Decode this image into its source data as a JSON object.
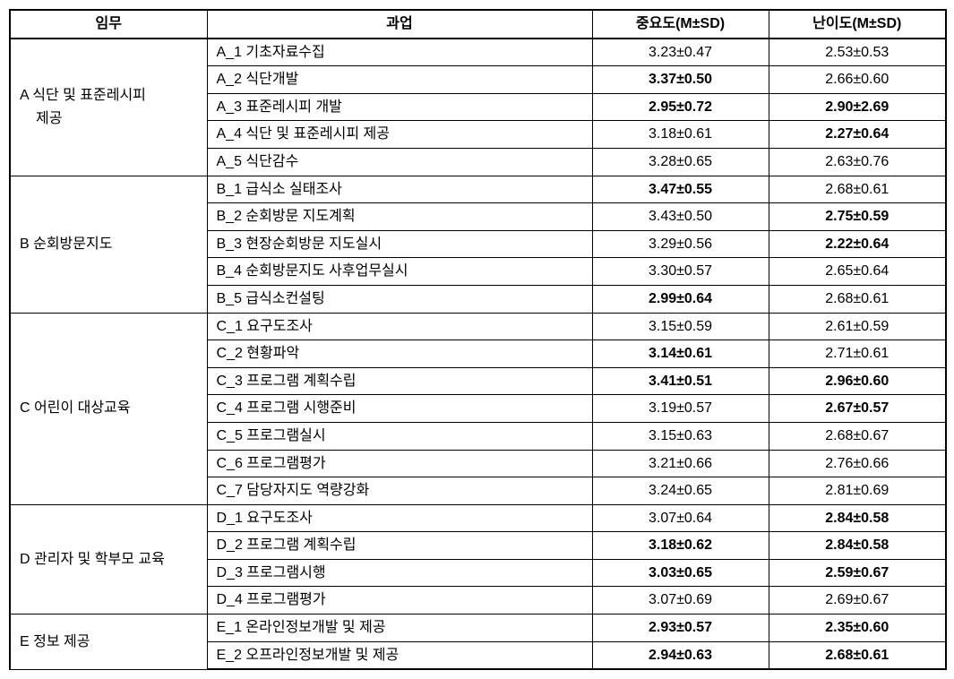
{
  "headers": {
    "duty": "임무",
    "task": "과업",
    "importance": "중요도(M±SD)",
    "difficulty": "난이도(M±SD)"
  },
  "sections": [
    {
      "dutyLine1": "A 식단 및 표준레시피",
      "dutyLine2": "제공",
      "rows": [
        {
          "task": "A_1 기초자료수집",
          "importance": "3.23±0.47",
          "importanceBold": false,
          "difficulty": "2.53±0.53",
          "difficultyBold": false
        },
        {
          "task": "A_2 식단개발",
          "importance": "3.37±0.50",
          "importanceBold": true,
          "difficulty": "2.66±0.60",
          "difficultyBold": false
        },
        {
          "task": "A_3 표준레시피 개발",
          "importance": "2.95±0.72",
          "importanceBold": true,
          "difficulty": "2.90±2.69",
          "difficultyBold": true
        },
        {
          "task": "A_4 식단 및 표준레시피 제공",
          "importance": "3.18±0.61",
          "importanceBold": false,
          "difficulty": "2.27±0.64",
          "difficultyBold": true
        },
        {
          "task": "A_5 식단감수",
          "importance": "3.28±0.65",
          "importanceBold": false,
          "difficulty": "2.63±0.76",
          "difficultyBold": false
        }
      ]
    },
    {
      "dutyLine1": "B 순회방문지도",
      "dutyLine2": "",
      "rows": [
        {
          "task": "B_1 급식소 실태조사",
          "importance": "3.47±0.55",
          "importanceBold": true,
          "difficulty": "2.68±0.61",
          "difficultyBold": false
        },
        {
          "task": "B_2 순회방문 지도계획",
          "importance": "3.43±0.50",
          "importanceBold": false,
          "difficulty": "2.75±0.59",
          "difficultyBold": true
        },
        {
          "task": "B_3 현장순회방문 지도실시",
          "importance": "3.29±0.56",
          "importanceBold": false,
          "difficulty": "2.22±0.64",
          "difficultyBold": true
        },
        {
          "task": "B_4 순회방문지도 사후업무실시",
          "importance": "3.30±0.57",
          "importanceBold": false,
          "difficulty": "2.65±0.64",
          "difficultyBold": false
        },
        {
          "task": "B_5 급식소컨설팅",
          "importance": "2.99±0.64",
          "importanceBold": true,
          "difficulty": "2.68±0.61",
          "difficultyBold": false
        }
      ]
    },
    {
      "dutyLine1": "C 어린이   대상교육",
      "dutyLine2": "",
      "rows": [
        {
          "task": "C_1 요구도조사",
          "importance": "3.15±0.59",
          "importanceBold": false,
          "difficulty": "2.61±0.59",
          "difficultyBold": false
        },
        {
          "task": "C_2 현황파악",
          "importance": "3.14±0.61",
          "importanceBold": true,
          "difficulty": "2.71±0.61",
          "difficultyBold": false
        },
        {
          "task": "C_3 프로그램 계획수립",
          "importance": "3.41±0.51",
          "importanceBold": true,
          "difficulty": "2.96±0.60",
          "difficultyBold": true
        },
        {
          "task": "C_4 프로그램 시행준비",
          "importance": "3.19±0.57",
          "importanceBold": false,
          "difficulty": "2.67±0.57",
          "difficultyBold": true
        },
        {
          "task": "C_5 프로그램실시",
          "importance": "3.15±0.63",
          "importanceBold": false,
          "difficulty": "2.68±0.67",
          "difficultyBold": false
        },
        {
          "task": "C_6 프로그램평가",
          "importance": "3.21±0.66",
          "importanceBold": false,
          "difficulty": "2.76±0.66",
          "difficultyBold": false
        },
        {
          "task": "C_7 담당자지도 역량강화",
          "importance": "3.24±0.65",
          "importanceBold": false,
          "difficulty": "2.81±0.69",
          "difficultyBold": false
        }
      ]
    },
    {
      "dutyLine1": "D 관리자 및 학부모 교육",
      "dutyLine2": "",
      "rows": [
        {
          "task": "D_1 요구도조사",
          "importance": "3.07±0.64",
          "importanceBold": false,
          "difficulty": "2.84±0.58",
          "difficultyBold": true
        },
        {
          "task": "D_2 프로그램 계획수립",
          "importance": "3.18±0.62",
          "importanceBold": true,
          "difficulty": "2.84±0.58",
          "difficultyBold": true
        },
        {
          "task": "D_3 프로그램시행",
          "importance": "3.03±0.65",
          "importanceBold": true,
          "difficulty": "2.59±0.67",
          "difficultyBold": true
        },
        {
          "task": "D_4 프로그램평가",
          "importance": "3.07±0.69",
          "importanceBold": false,
          "difficulty": "2.69±0.67",
          "difficultyBold": false
        }
      ]
    },
    {
      "dutyLine1": "E 정보 제공",
      "dutyLine2": "",
      "rows": [
        {
          "task": "E_1 온라인정보개발 및 제공",
          "importance": "2.93±0.57",
          "importanceBold": true,
          "difficulty": "2.35±0.60",
          "difficultyBold": true
        },
        {
          "task": "E_2 오프라인정보개발 및 제공",
          "importance": "2.94±0.63",
          "importanceBold": true,
          "difficulty": "2.68±0.61",
          "difficultyBold": true
        }
      ]
    }
  ]
}
